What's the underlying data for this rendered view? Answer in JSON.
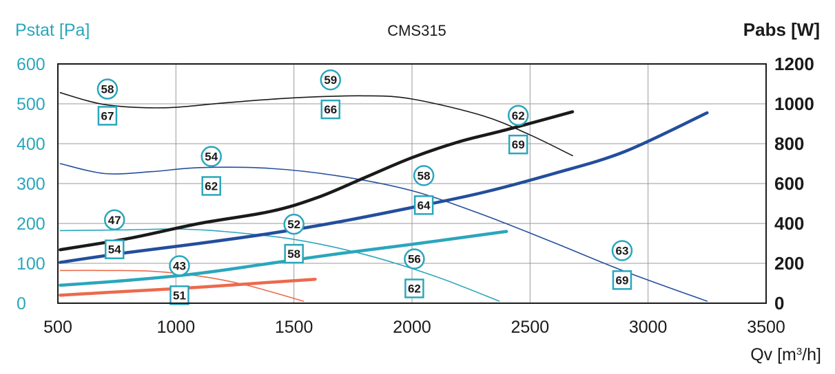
{
  "chart_data": {
    "type": "line",
    "title": "CMS315",
    "ylabel_left": "Pstat [Pa]",
    "ylabel_right": "Pabs [W]",
    "xlabel": "Qv [m",
    "xlabel_sup": "3",
    "xlabel_end": "/h]",
    "xlim": [
      500,
      3500
    ],
    "ylim_left": [
      0,
      600
    ],
    "ylim_right": [
      0,
      1200
    ],
    "x_ticks": [
      500,
      1000,
      1500,
      2000,
      2500,
      3000,
      3500
    ],
    "left_ticks": [
      0,
      100,
      200,
      300,
      400,
      500,
      600
    ],
    "right_ticks": [
      0,
      200,
      400,
      600,
      800,
      1000,
      1200
    ],
    "grid": true,
    "colors": {
      "teal": "#2aa6bd",
      "black": "#1a1a1a",
      "navy": "#234e9c",
      "red": "#ec6a4c",
      "grid": "#999999"
    },
    "series": [
      {
        "name": "pressure-black",
        "axis": "left",
        "color": "#1a1a1a",
        "width": 1.6,
        "x": [
          510,
          700,
          950,
          1200,
          1500,
          1800,
          2000,
          2300,
          2500,
          2680
        ],
        "y": [
          528,
          498,
          490,
          502,
          515,
          520,
          512,
          470,
          422,
          370
        ]
      },
      {
        "name": "pressure-navy",
        "axis": "left",
        "color": "#234e9c",
        "width": 1.6,
        "x": [
          510,
          700,
          900,
          1100,
          1400,
          1700,
          2000,
          2300,
          2600,
          2900,
          3250
        ],
        "y": [
          350,
          325,
          330,
          340,
          338,
          318,
          282,
          222,
          152,
          80,
          5
        ]
      },
      {
        "name": "pressure-teal",
        "axis": "left",
        "color": "#2aa6bd",
        "width": 1.6,
        "x": [
          510,
          800,
          1000,
          1200,
          1500,
          1800,
          2100,
          2370
        ],
        "y": [
          182,
          184,
          186,
          180,
          160,
          122,
          67,
          5
        ]
      },
      {
        "name": "pressure-red",
        "axis": "left",
        "color": "#ec6a4c",
        "width": 1.6,
        "x": [
          510,
          700,
          900,
          1100,
          1300,
          1540
        ],
        "y": [
          82,
          82,
          80,
          68,
          45,
          5
        ]
      },
      {
        "name": "power-black",
        "axis": "right",
        "color": "#1a1a1a",
        "width": 4.5,
        "x": [
          510,
          800,
          1100,
          1400,
          1600,
          1800,
          2000,
          2200,
          2400,
          2680
        ],
        "y": [
          268,
          325,
          400,
          460,
          530,
          630,
          730,
          810,
          870,
          960
        ]
      },
      {
        "name": "power-navy",
        "axis": "right",
        "color": "#234e9c",
        "width": 4.5,
        "x": [
          510,
          800,
          1100,
          1400,
          1700,
          2000,
          2300,
          2600,
          2900,
          3250
        ],
        "y": [
          205,
          255,
          300,
          350,
          410,
          480,
          555,
          650,
          760,
          955
        ]
      },
      {
        "name": "power-teal",
        "axis": "right",
        "color": "#2aa6bd",
        "width": 4.5,
        "x": [
          510,
          800,
          1100,
          1400,
          1700,
          2000,
          2400
        ],
        "y": [
          90,
          115,
          150,
          200,
          250,
          295,
          360
        ]
      },
      {
        "name": "power-red",
        "axis": "right",
        "color": "#ec6a4c",
        "width": 4.5,
        "x": [
          510,
          800,
          1100,
          1400,
          1590
        ],
        "y": [
          40,
          60,
          80,
          105,
          120
        ]
      }
    ],
    "annotations": [
      {
        "shape": "circle",
        "text": "58",
        "x": 710,
        "y": 537
      },
      {
        "shape": "square",
        "text": "67",
        "x": 710,
        "y": 470
      },
      {
        "shape": "circle",
        "text": "59",
        "x": 1655,
        "y": 560
      },
      {
        "shape": "square",
        "text": "66",
        "x": 1655,
        "y": 486
      },
      {
        "shape": "circle",
        "text": "62",
        "x": 2450,
        "y": 471
      },
      {
        "shape": "square",
        "text": "69",
        "x": 2450,
        "y": 398
      },
      {
        "shape": "circle",
        "text": "54",
        "x": 1150,
        "y": 368
      },
      {
        "shape": "square",
        "text": "62",
        "x": 1150,
        "y": 294
      },
      {
        "shape": "circle",
        "text": "58",
        "x": 2050,
        "y": 320
      },
      {
        "shape": "square",
        "text": "64",
        "x": 2050,
        "y": 246
      },
      {
        "shape": "circle",
        "text": "47",
        "x": 740,
        "y": 209
      },
      {
        "shape": "square",
        "text": "54",
        "x": 740,
        "y": 135
      },
      {
        "shape": "circle",
        "text": "52",
        "x": 1500,
        "y": 198
      },
      {
        "shape": "square",
        "text": "58",
        "x": 1500,
        "y": 124
      },
      {
        "shape": "circle",
        "text": "43",
        "x": 1015,
        "y": 94
      },
      {
        "shape": "square",
        "text": "51",
        "x": 1015,
        "y": 20
      },
      {
        "shape": "circle",
        "text": "56",
        "x": 2010,
        "y": 111
      },
      {
        "shape": "square",
        "text": "62",
        "x": 2010,
        "y": 37
      },
      {
        "shape": "circle",
        "text": "63",
        "x": 2890,
        "y": 132
      },
      {
        "shape": "square",
        "text": "69",
        "x": 2890,
        "y": 58
      }
    ]
  }
}
